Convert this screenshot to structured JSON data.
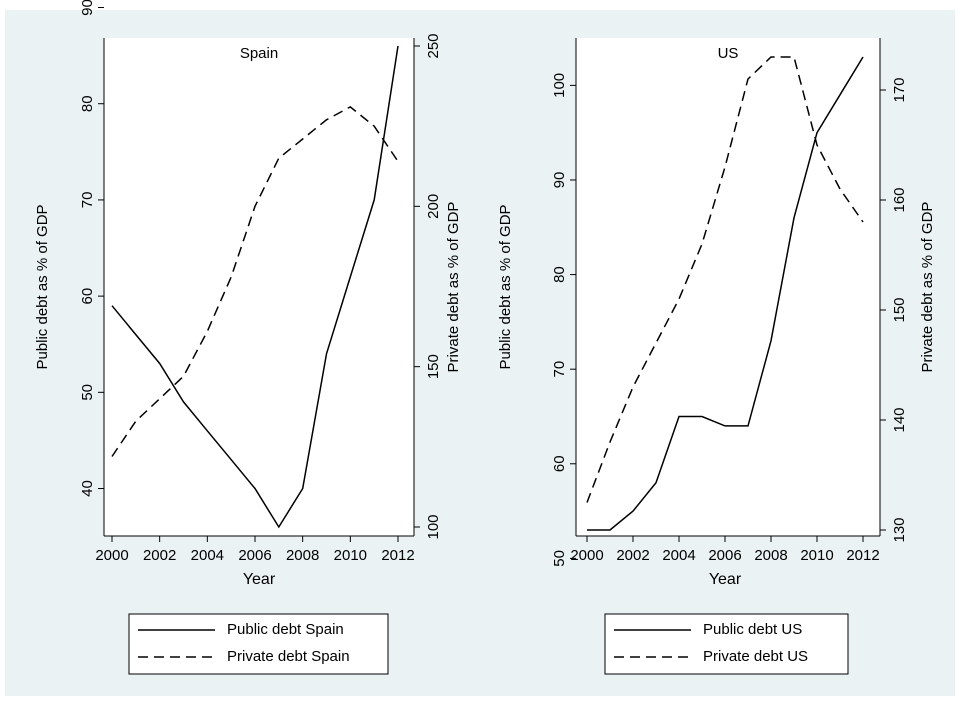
{
  "colors": {
    "background": "#ffffff",
    "panel": "#eaf2f3",
    "plot": "#ffffff",
    "line": "#000000"
  },
  "chart_data": [
    {
      "type": "line",
      "title": "Spain",
      "xlabel": "Year",
      "ylabel_left": "Public debt as % of GDP",
      "ylabel_right": "Private debt as % of GDP",
      "x_ticks": [
        2000,
        2002,
        2004,
        2006,
        2008,
        2010,
        2012
      ],
      "x_range": [
        2000,
        2012
      ],
      "y_left_ticks": [
        40,
        50,
        60,
        70,
        80,
        90
      ],
      "y_left_range": [
        36,
        86
      ],
      "y_right_ticks": [
        100,
        150,
        200,
        250
      ],
      "y_right_range": [
        100,
        250
      ],
      "x": [
        2000,
        2001,
        2002,
        2003,
        2004,
        2005,
        2006,
        2007,
        2008,
        2009,
        2010,
        2011,
        2012
      ],
      "series": [
        {
          "name": "Public debt Spain",
          "axis": "left",
          "style": "solid",
          "values": [
            59,
            56,
            53,
            49,
            46,
            43,
            40,
            36,
            40,
            54,
            62,
            70,
            86
          ]
        },
        {
          "name": "Private debt Spain",
          "axis": "right",
          "style": "dashed",
          "values": [
            122,
            133,
            140,
            147,
            161,
            178,
            200,
            215,
            221,
            227,
            231,
            225,
            214
          ]
        }
      ],
      "legend_position": "bottom"
    },
    {
      "type": "line",
      "title": "US",
      "xlabel": "Year",
      "ylabel_left": "Public debt as % of GDP",
      "ylabel_right": "Private debt as % of GDP",
      "x_ticks": [
        2000,
        2002,
        2004,
        2006,
        2008,
        2010,
        2012
      ],
      "x_range": [
        2000,
        2012
      ],
      "y_left_ticks": [
        50,
        60,
        70,
        80,
        90,
        100
      ],
      "y_left_range": [
        53,
        103
      ],
      "y_right_ticks": [
        130,
        140,
        150,
        160,
        170
      ],
      "y_right_range": [
        130,
        173
      ],
      "x": [
        2000,
        2001,
        2002,
        2003,
        2004,
        2005,
        2006,
        2007,
        2008,
        2009,
        2010,
        2011,
        2012
      ],
      "series": [
        {
          "name": "Public debt US",
          "axis": "left",
          "style": "solid",
          "values": [
            53,
            53,
            55,
            58,
            65,
            65,
            64,
            64,
            73,
            86,
            95,
            99,
            103
          ]
        },
        {
          "name": "Private debt US",
          "axis": "right",
          "style": "dashed",
          "values": [
            132.5,
            138,
            143,
            147,
            151,
            156,
            163,
            171,
            173,
            173,
            165,
            161,
            158
          ]
        }
      ],
      "legend_position": "bottom"
    }
  ]
}
